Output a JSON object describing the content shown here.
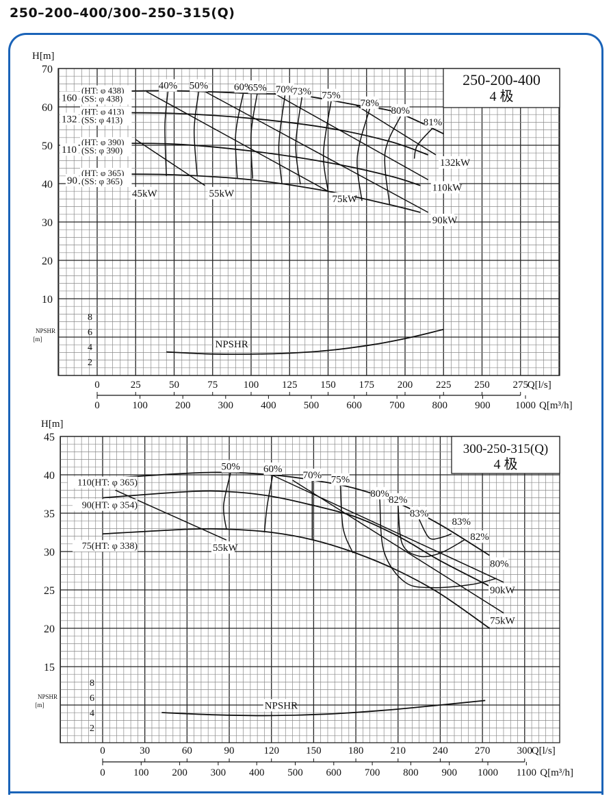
{
  "title": "250–200–400/300–250–315(Q)",
  "colors": {
    "frame": "#1a63b8",
    "grid_minor": "#777777",
    "grid_major": "#222222",
    "curve": "#111111"
  },
  "chart_data": [
    {
      "type": "line",
      "model_label": "250-200-400",
      "poles_label": "4 极",
      "ylabel": "H[m]",
      "npsh_label": "NPSHR",
      "npsh_unit": "[m]",
      "xlabel": "Q[l/s]",
      "x2label": "Q[m³/h]",
      "xlim": [
        0,
        275
      ],
      "ylim": [
        10,
        70
      ],
      "grid": true,
      "x_ticks": [
        0,
        25,
        50,
        75,
        100,
        125,
        150,
        175,
        200,
        225,
        250,
        275
      ],
      "x2_ticks": [
        0,
        100,
        200,
        300,
        400,
        500,
        600,
        700,
        800,
        900,
        1000
      ],
      "y_ticks": [
        10,
        20,
        30,
        40,
        50,
        60,
        70
      ],
      "npsh_ticks": [
        2,
        4,
        6,
        8
      ],
      "head_curves": [
        {
          "power": "160",
          "label1": "(HT: φ 438)",
          "label2": "(SS: φ 438)",
          "points": [
            [
              0,
              64
            ],
            [
              50,
              64.2
            ],
            [
              100,
              63.5
            ],
            [
              132,
              63
            ],
            [
              168,
              60.5
            ],
            [
              195,
              58.5
            ],
            [
              225,
              53
            ]
          ]
        },
        {
          "power": "132",
          "label1": "(HT: φ 413)",
          "label2": "(SS: φ 413)",
          "points": [
            [
              0,
              58.5
            ],
            [
              50,
              58.3
            ],
            [
              100,
              57
            ],
            [
              150,
              54.5
            ],
            [
              190,
              51
            ],
            [
              215,
              47.5
            ]
          ]
        },
        {
          "power": "110",
          "label1": "(HT: φ 390)",
          "label2": "(SS: φ 390)",
          "points": [
            [
              0,
              50.5
            ],
            [
              50,
              50.3
            ],
            [
              100,
              48.5
            ],
            [
              150,
              45.5
            ],
            [
              190,
              42
            ],
            [
              210,
              39.5
            ]
          ]
        },
        {
          "power": "90",
          "label1": "(HT: φ 365)",
          "label2": "(SS: φ 365)",
          "points": [
            [
              0,
              42.5
            ],
            [
              50,
              42.3
            ],
            [
              100,
              41
            ],
            [
              150,
              38
            ],
            [
              190,
              34.5
            ],
            [
              210,
              32.5
            ]
          ]
        }
      ],
      "power_lines": [
        {
          "label": "45kW",
          "points": [
            [
              7,
              43
            ],
            [
              20,
              39.5
            ]
          ]
        },
        {
          "label": "55kW",
          "points": [
            [
              25,
              51.5
            ],
            [
              70,
              39.5
            ]
          ]
        },
        {
          "label": "75kW",
          "points": [
            [
              32,
              64
            ],
            [
              150,
              38
            ]
          ]
        },
        {
          "label": "90kW",
          "points": [
            [
              70,
              64
            ],
            [
              215,
              32.5
            ]
          ]
        },
        {
          "label": "110kW",
          "points": [
            [
              115,
              63.5
            ],
            [
              215,
              41
            ]
          ]
        },
        {
          "label": "132kW",
          "points": [
            [
              168,
              60.5
            ],
            [
              220,
              47.5
            ]
          ]
        }
      ],
      "efficiency_curves": [
        {
          "label": "40%",
          "points": [
            [
              46,
              64
            ],
            [
              44,
              55
            ],
            [
              45,
              42
            ]
          ]
        },
        {
          "label": "50%",
          "points": [
            [
              66,
              64
            ],
            [
              63,
              54
            ],
            [
              65,
              42
            ]
          ]
        },
        {
          "label": "60%",
          "points": [
            [
              95,
              63.7
            ],
            [
              90,
              53
            ],
            [
              91,
              41.5
            ]
          ]
        },
        {
          "label": "65%",
          "points": [
            [
              104,
              63.5
            ],
            [
              100,
              53
            ],
            [
              101,
              41.3
            ]
          ]
        },
        {
          "label": "70%",
          "points": [
            [
              122,
              63
            ],
            [
              118,
              50
            ],
            [
              120,
              40
            ]
          ]
        },
        {
          "label": "73%",
          "points": [
            [
              133,
              62.5
            ],
            [
              129,
              50
            ],
            [
              132,
              39.8
            ]
          ]
        },
        {
          "label": "75%",
          "points": [
            [
              152,
              61.5
            ],
            [
              147,
              48
            ],
            [
              150,
              38
            ]
          ]
        },
        {
          "label": "78%",
          "points": [
            [
              177,
              59.5
            ],
            [
              169,
              47
            ],
            [
              172,
              35.5
            ]
          ]
        },
        {
          "label": "80%",
          "points": [
            [
              197,
              57.5
            ],
            [
              187,
              48
            ],
            [
              190,
              34.5
            ]
          ]
        },
        {
          "label": "81%",
          "points": [
            [
              218,
              54.5
            ],
            [
              208,
              50
            ],
            [
              206,
              46.5
            ]
          ]
        }
      ],
      "npsh_curve": [
        [
          45,
          3.3
        ],
        [
          70,
          3.05
        ],
        [
          90,
          3
        ],
        [
          120,
          3.1
        ],
        [
          150,
          3.5
        ],
        [
          180,
          4.3
        ],
        [
          205,
          5.3
        ],
        [
          225,
          6.3
        ]
      ]
    },
    {
      "type": "line",
      "model_label": "300-250-315(Q)",
      "poles_label": "4 极",
      "ylabel": "H[m]",
      "npsh_label": "NPSHR",
      "npsh_unit": "[m]",
      "xlabel": "Q[l/s]",
      "x2label": "Q[m³/h]",
      "xlim": [
        0,
        300
      ],
      "ylim": [
        15,
        45
      ],
      "grid": true,
      "x_ticks": [
        0,
        30,
        60,
        90,
        120,
        150,
        180,
        210,
        240,
        270,
        300
      ],
      "x2_ticks": [
        0,
        100,
        200,
        300,
        400,
        500,
        600,
        700,
        800,
        900,
        1000,
        1100
      ],
      "y_ticks": [
        15,
        20,
        25,
        30,
        35,
        40,
        45
      ],
      "npsh_ticks": [
        2,
        4,
        6,
        8
      ],
      "head_curves": [
        {
          "power": "110",
          "label1": "(HT: φ 365)",
          "label2": "",
          "points": [
            [
              0,
              39.5
            ],
            [
              60,
              40.2
            ],
            [
              90,
              40.3
            ],
            [
              120,
              40
            ],
            [
              150,
              39.3
            ],
            [
              180,
              38.2
            ],
            [
              210,
              36.3
            ],
            [
              240,
              33.5
            ],
            [
              275,
              29.5
            ]
          ]
        },
        {
          "power": "90",
          "label1": "(HT: φ 354)",
          "label2": "",
          "points": [
            [
              0,
              37
            ],
            [
              60,
              37.8
            ],
            [
              90,
              37.8
            ],
            [
              120,
              37.2
            ],
            [
              150,
              36
            ],
            [
              180,
              34.5
            ],
            [
              210,
              32
            ],
            [
              240,
              28.8
            ],
            [
              275,
              25.5
            ]
          ]
        },
        {
          "power": "75",
          "label1": "(HT: φ 338)",
          "label2": "",
          "points": [
            [
              0,
              32.3
            ],
            [
              60,
              32.9
            ],
            [
              90,
              32.9
            ],
            [
              120,
              32.5
            ],
            [
              150,
              31.5
            ],
            [
              180,
              29.8
            ],
            [
              210,
              27.5
            ],
            [
              240,
              24.5
            ],
            [
              275,
              20
            ]
          ]
        }
      ],
      "power_lines": [
        {
          "label": "55kW",
          "points": [
            [
              9,
              38
            ],
            [
              88,
              31.5
            ]
          ]
        },
        {
          "label": "90kW",
          "points": [
            [
              120,
              40
            ],
            [
              285,
              26
            ]
          ]
        },
        {
          "label": "75kW",
          "points": [
            [
              135,
              39.3
            ],
            [
              285,
              22
            ]
          ]
        }
      ],
      "efficiency_curves": [
        {
          "label": "50%",
          "points": [
            [
              91,
              40.3
            ],
            [
              86,
              36
            ],
            [
              88,
              32.9
            ]
          ]
        },
        {
          "label": "60%",
          "points": [
            [
              121,
              40
            ],
            [
              117,
              36
            ],
            [
              115,
              32.5
            ]
          ]
        },
        {
          "label": "70%",
          "points": [
            [
              149,
              39.2
            ],
            [
              149,
              35
            ],
            [
              149,
              31.5
            ]
          ]
        },
        {
          "label": "75%",
          "points": [
            [
              169,
              38.6
            ],
            [
              171,
              33
            ],
            [
              178,
              29.8
            ]
          ]
        },
        {
          "label": "80%",
          "points": [
            [
              197,
              36.8
            ],
            [
              200,
              30
            ],
            [
              215,
              26
            ],
            [
              235,
              25.3
            ],
            [
              262,
              25.7
            ],
            [
              280,
              26.5
            ]
          ]
        },
        {
          "label": "82%",
          "points": [
            [
              210,
              36
            ],
            [
              213,
              31
            ],
            [
              225,
              29.4
            ],
            [
              240,
              29.8
            ],
            [
              257,
              31.5
            ]
          ]
        },
        {
          "label": "83%",
          "points": [
            [
              225,
              34.2
            ],
            [
              232,
              31.8
            ],
            [
              240,
              31.8
            ],
            [
              248,
              32.3
            ]
          ]
        }
      ],
      "efficiency_extra_labels": [
        "83%",
        "82%",
        "80%"
      ],
      "npsh_curve": [
        [
          42,
          4
        ],
        [
          80,
          3.7
        ],
        [
          120,
          3.6
        ],
        [
          160,
          3.8
        ],
        [
          200,
          4.3
        ],
        [
          240,
          5
        ],
        [
          272,
          5.6
        ]
      ]
    }
  ]
}
